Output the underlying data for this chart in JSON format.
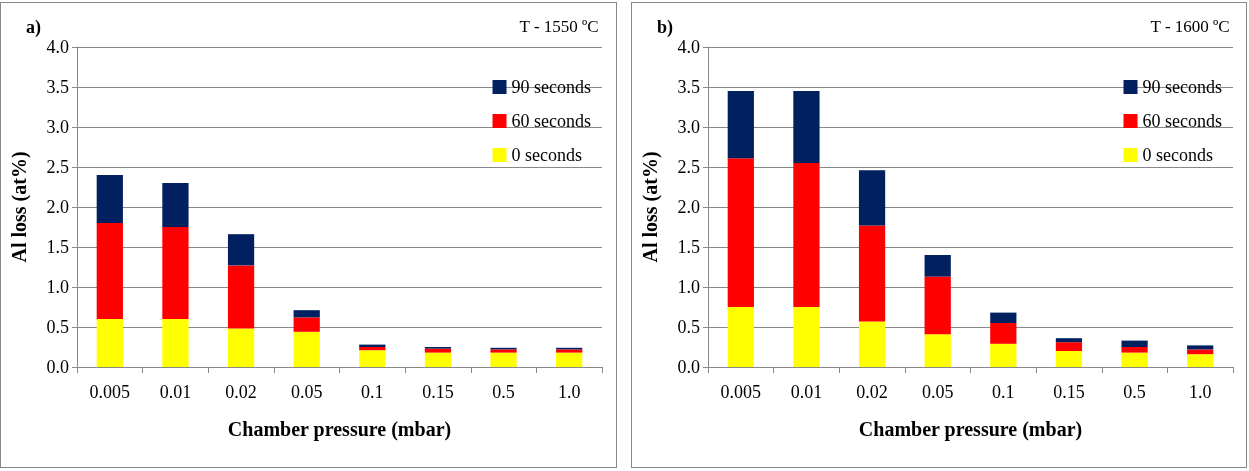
{
  "chart_data": [
    {
      "type": "bar",
      "title": "a)",
      "annotations": [
        "T - 1550 ºC"
      ],
      "xlabel": "Chamber pressure (mbar)",
      "ylabel": "Al loss (at%)",
      "categories": [
        "0.005",
        "0.01",
        "0.02",
        "0.05",
        "0.1",
        "0.15",
        "0.5",
        "1.0"
      ],
      "stacked": true,
      "ylim": [
        0,
        4
      ],
      "yticks": [
        {
          "value": 0,
          "label": "0.0"
        },
        {
          "value": 0.5,
          "label": "0.5"
        },
        {
          "value": 1,
          "label": "1.0"
        },
        {
          "value": 1.5,
          "label": "1.5"
        },
        {
          "value": 2,
          "label": "2.0"
        },
        {
          "value": 2.5,
          "label": "2.5"
        },
        {
          "value": 3,
          "label": "3.0"
        },
        {
          "value": 3.5,
          "label": "3.5"
        },
        {
          "value": 4,
          "label": "4.0"
        }
      ],
      "grid": "y",
      "legend": "top right",
      "series": [
        {
          "name": "0 seconds",
          "color": "#ffff00",
          "values": [
            0.6,
            0.6,
            0.48,
            0.44,
            0.21,
            0.18,
            0.18,
            0.18
          ]
        },
        {
          "name": "60 seconds",
          "color": "#ff0000",
          "values": [
            1.2,
            1.15,
            0.79,
            0.18,
            0.04,
            0.05,
            0.04,
            0.04
          ]
        },
        {
          "name": "90 seconds",
          "color": "#002060",
          "values": [
            0.6,
            0.55,
            0.39,
            0.09,
            0.03,
            0.02,
            0.02,
            0.02
          ]
        }
      ]
    },
    {
      "type": "bar",
      "title": "b)",
      "annotations": [
        "T - 1600 ºC"
      ],
      "xlabel": "Chamber pressure (mbar)",
      "ylabel": "Al loss (at%)",
      "categories": [
        "0.005",
        "0.01",
        "0.02",
        "0.05",
        "0.1",
        "0.15",
        "0.5",
        "1.0"
      ],
      "stacked": true,
      "ylim": [
        0,
        4
      ],
      "yticks": [
        {
          "value": 0,
          "label": "0.0"
        },
        {
          "value": 0.5,
          "label": "0.5"
        },
        {
          "value": 1,
          "label": "1.0"
        },
        {
          "value": 1.5,
          "label": "1.5"
        },
        {
          "value": 2,
          "label": "2.0"
        },
        {
          "value": 2.5,
          "label": "2.5"
        },
        {
          "value": 3,
          "label": "3.0"
        },
        {
          "value": 3.5,
          "label": "3.5"
        },
        {
          "value": 4,
          "label": "4.0"
        }
      ],
      "grid": "y",
      "legend": "top right",
      "series": [
        {
          "name": "0 seconds",
          "color": "#ffff00",
          "values": [
            0.75,
            0.75,
            0.57,
            0.41,
            0.29,
            0.2,
            0.18,
            0.16
          ]
        },
        {
          "name": "60 seconds",
          "color": "#ff0000",
          "values": [
            1.86,
            1.8,
            1.2,
            0.72,
            0.26,
            0.11,
            0.07,
            0.06
          ]
        },
        {
          "name": "90 seconds",
          "color": "#002060",
          "values": [
            0.84,
            0.9,
            0.69,
            0.27,
            0.13,
            0.05,
            0.08,
            0.05
          ]
        }
      ]
    }
  ]
}
